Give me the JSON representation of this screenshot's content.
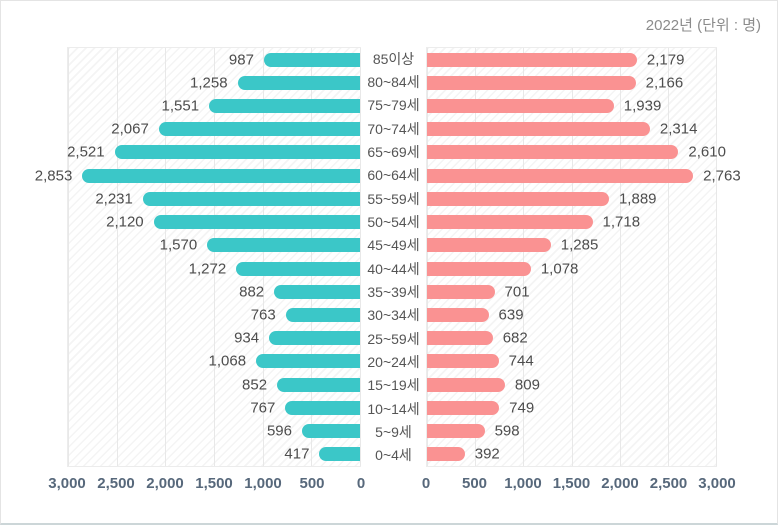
{
  "header": {
    "title": "2022년 (단위 : 명)"
  },
  "colors": {
    "left_bar": "#3bc7c8",
    "right_bar": "#fa9292",
    "value_label": "#4d4d4d",
    "tick_label": "#57687b",
    "title_text": "#8b8b8b"
  },
  "chart_data": {
    "type": "bar",
    "orientation": "horizontal-pyramid",
    "title": "2022년 (단위 : 명)",
    "categories": [
      "85이상",
      "80~84세",
      "75~79세",
      "70~74세",
      "65~69세",
      "60~64세",
      "55~59세",
      "50~54세",
      "45~49세",
      "40~44세",
      "35~39세",
      "30~34세",
      "25~59세",
      "20~24세",
      "15~19세",
      "10~14세",
      "5~9세",
      "0~4세"
    ],
    "series": [
      {
        "name": "left",
        "values": [
          987,
          1258,
          1551,
          2067,
          2521,
          2853,
          2231,
          2120,
          1570,
          1272,
          882,
          763,
          934,
          1068,
          852,
          767,
          596,
          417
        ]
      },
      {
        "name": "right",
        "values": [
          2179,
          2166,
          1939,
          2314,
          2610,
          2763,
          1889,
          1718,
          1285,
          1078,
          701,
          639,
          682,
          744,
          809,
          749,
          598,
          392
        ]
      }
    ],
    "xlim": [
      0,
      3000
    ],
    "grid_step": 500,
    "grid": true,
    "legend": "none",
    "left_axis_ticks": [
      "3,000",
      "2,500",
      "2,000",
      "1,500",
      "1,000",
      "500",
      "0"
    ],
    "right_axis_ticks": [
      "0",
      "500",
      "1,000",
      "1,500",
      "2,000",
      "2,500",
      "3,000"
    ]
  }
}
